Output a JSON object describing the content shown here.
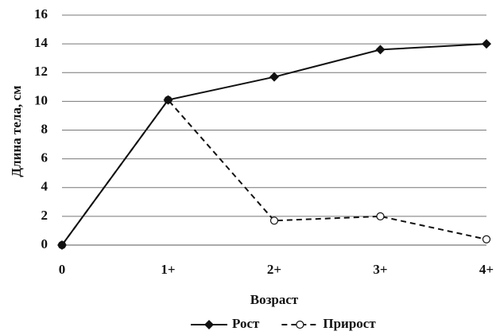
{
  "chart_data": {
    "type": "line",
    "xlabel": "Возраст",
    "ylabel": "Длина тела, см",
    "categories": [
      "0",
      "1+",
      "2+",
      "3+",
      "4+"
    ],
    "series": [
      {
        "name": "Рост",
        "color": "#111111",
        "marker": "diamond",
        "line_style": "solid",
        "values": [
          0,
          10.1,
          11.7,
          13.6,
          14.0
        ]
      },
      {
        "name": "Прирост",
        "color": "#111111",
        "marker": "circle",
        "line_style": "dashed",
        "values": [
          0,
          10.1,
          1.7,
          2.0,
          0.4
        ]
      }
    ],
    "ylim": [
      0,
      16
    ],
    "yticks": [
      0,
      2,
      4,
      6,
      8,
      10,
      12,
      14,
      16
    ],
    "grid": true,
    "legend": "bottom"
  }
}
